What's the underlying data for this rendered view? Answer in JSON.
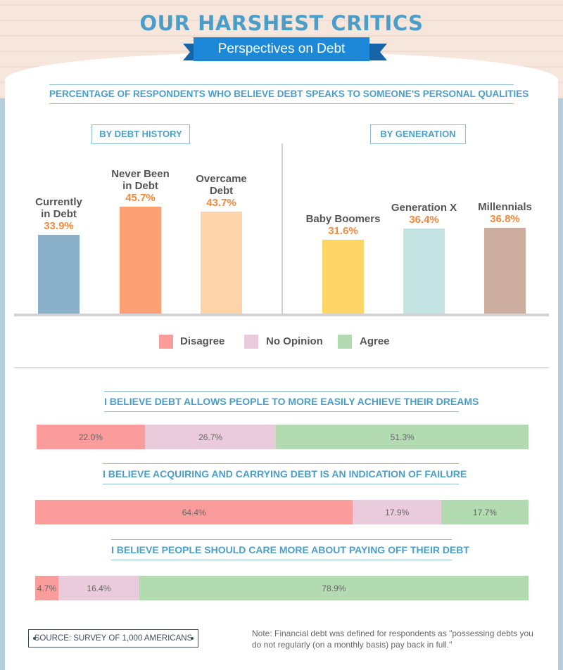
{
  "header": {
    "title": "OUR HARSHEST CRITICS",
    "subtitle": "Perspectives on Debt"
  },
  "section_title": "PERCENTAGE OF RESPONDENTS WHO BELIEVE DEBT SPEAKS TO SOMEONE'S PERSONAL QUALITIES",
  "colors": {
    "disagree": "#fb9c9c",
    "no_opinion": "#e9cbdb",
    "agree": "#b2dbb2",
    "accent": "#4a9ec9",
    "value": "#f08a3e"
  },
  "chart_data": [
    {
      "type": "bar",
      "title": "BY DEBT HISTORY",
      "categories": [
        "Currently in Debt",
        "Never Been in Debt",
        "Overcame Debt"
      ],
      "labels": [
        [
          "Currently",
          "in Debt"
        ],
        [
          "Never Been",
          "in Debt"
        ],
        [
          "Overcame",
          "Debt"
        ]
      ],
      "values": [
        33.9,
        45.7,
        43.7
      ],
      "value_labels": [
        "33.9%",
        "45.7%",
        "43.7%"
      ],
      "colors": [
        "#8aafc8",
        "#fda074",
        "#fdd4a9"
      ],
      "ylim": [
        0,
        60
      ]
    },
    {
      "type": "bar",
      "title": "BY GENERATION",
      "categories": [
        "Baby Boomers",
        "Generation X",
        "Millennials"
      ],
      "labels": [
        [
          "Baby Boomers"
        ],
        [
          "Generation X"
        ],
        [
          "Millennials"
        ]
      ],
      "values": [
        31.6,
        36.4,
        36.8
      ],
      "value_labels": [
        "31.6%",
        "36.4%",
        "36.8%"
      ],
      "colors": [
        "#fed566",
        "#c3e4e3",
        "#cdada0"
      ],
      "ylim": [
        0,
        60
      ]
    },
    {
      "type": "bar",
      "subtype": "stacked-100",
      "legend": [
        "Disagree",
        "No Opinion",
        "Agree"
      ],
      "rows": [
        {
          "question": "I BELIEVE DEBT ALLOWS PEOPLE TO MORE EASILY ACHIEVE THEIR DREAMS",
          "values": [
            22.0,
            26.7,
            51.3
          ],
          "labels": [
            "22.0%",
            "26.7%",
            "51.3%"
          ]
        },
        {
          "question": "I BELIEVE ACQUIRING AND CARRYING DEBT IS AN INDICATION OF FAILURE",
          "values": [
            64.4,
            17.9,
            17.7
          ],
          "labels": [
            "64.4%",
            "17.9%",
            "17.7%"
          ]
        },
        {
          "question": "I BELIEVE PEOPLE SHOULD CARE MORE ABOUT PAYING OFF THEIR DEBT",
          "values": [
            4.7,
            16.4,
            78.9
          ],
          "labels": [
            "4.7%",
            "16.4%",
            "78.9%"
          ]
        }
      ]
    }
  ],
  "footer": {
    "source": "SOURCE: SURVEY OF 1,000 AMERICANS",
    "note": "Note: Financial debt was defined for respondents as \"possessing debts you do not regularly (on a monthly basis) pay back in full.\""
  }
}
